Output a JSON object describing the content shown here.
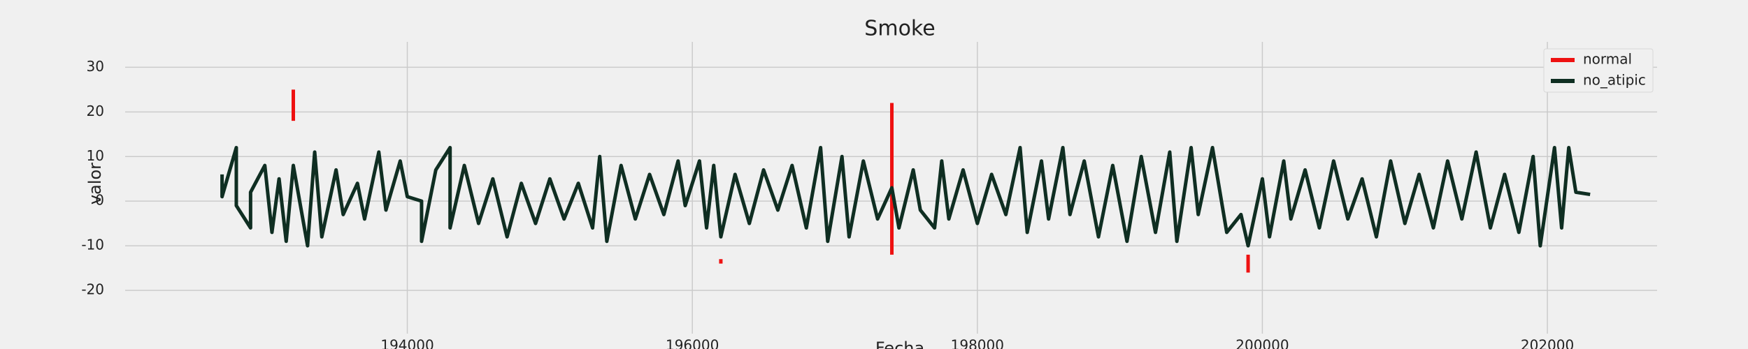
{
  "chart_data": {
    "type": "line",
    "title": "Smoke",
    "x_label": "Fecha",
    "y_label": "valor",
    "xlim": [
      192020,
      202770
    ],
    "ylim": [
      -29.7,
      35.7
    ],
    "xticks": [
      194000,
      196000,
      198000,
      200000,
      202000
    ],
    "yticks": [
      -20,
      -10,
      0,
      10,
      20,
      30
    ],
    "grid": true,
    "legend": "upper right",
    "series": [
      {
        "name": "normal",
        "color": "#ee1111",
        "x": [
          193200,
          193200,
          193250,
          196200,
          196200,
          196250,
          197400,
          197400,
          197450,
          199900,
          199900
        ],
        "values": [
          18,
          25,
          null,
          -13,
          -14,
          null,
          -12,
          22,
          null,
          -12,
          -16
        ]
      },
      {
        "name": "no_atipic",
        "color": "#0f2e22",
        "x": [
          192700,
          192700,
          192800,
          192800,
          192900,
          192900,
          193000,
          193050,
          193100,
          193150,
          193200,
          193300,
          193350,
          193400,
          193500,
          193550,
          193650,
          193700,
          193800,
          193850,
          193950,
          194000,
          194100,
          194100,
          194200,
          194300,
          194300,
          194400,
          194500,
          194600,
          194700,
          194800,
          194900,
          195000,
          195100,
          195200,
          195300,
          195350,
          195400,
          195500,
          195600,
          195700,
          195800,
          195900,
          195950,
          196050,
          196100,
          196150,
          196200,
          196300,
          196400,
          196500,
          196600,
          196700,
          196800,
          196900,
          196950,
          197050,
          197100,
          197200,
          197300,
          197400,
          197450,
          197550,
          197600,
          197700,
          197750,
          197800,
          197900,
          198000,
          198100,
          198200,
          198300,
          198350,
          198450,
          198500,
          198600,
          198650,
          198750,
          198850,
          198950,
          199050,
          199150,
          199250,
          199350,
          199400,
          199500,
          199550,
          199650,
          199750,
          199850,
          199900,
          200000,
          200050,
          200150,
          200200,
          200300,
          200400,
          200500,
          200600,
          200700,
          200800,
          200900,
          201000,
          201100,
          201200,
          201300,
          201400,
          201500,
          201600,
          201700,
          201800,
          201900,
          201950,
          202050,
          202100,
          202150,
          202200,
          202300
        ],
        "values": [
          6,
          1,
          12,
          -1,
          -6,
          2,
          8,
          -7,
          5,
          -9,
          8,
          -10,
          11,
          -8,
          7,
          -3,
          4,
          -4,
          11,
          -2,
          9,
          1,
          0,
          -9,
          7,
          12,
          -6,
          8,
          -5,
          5,
          -8,
          4,
          -5,
          5,
          -4,
          4,
          -6,
          10,
          -9,
          8,
          -4,
          6,
          -3,
          9,
          -1,
          9,
          -6,
          8,
          -8,
          6,
          -5,
          7,
          -2,
          8,
          -6,
          12,
          -9,
          10,
          -8,
          9,
          -4,
          3,
          -6,
          7,
          -2,
          -6,
          9,
          -4,
          7,
          -5,
          6,
          -3,
          12,
          -7,
          9,
          -4,
          12,
          -3,
          9,
          -8,
          8,
          -9,
          10,
          -7,
          11,
          -9,
          12,
          -3,
          12,
          -7,
          -3,
          -10,
          5,
          -8,
          9,
          -4,
          7,
          -6,
          9,
          -4,
          5,
          -8,
          9,
          -5,
          6,
          -6,
          9,
          -4,
          11,
          -6,
          6,
          -7,
          10,
          -10,
          12,
          -6,
          12,
          2,
          1.5
        ]
      }
    ]
  }
}
